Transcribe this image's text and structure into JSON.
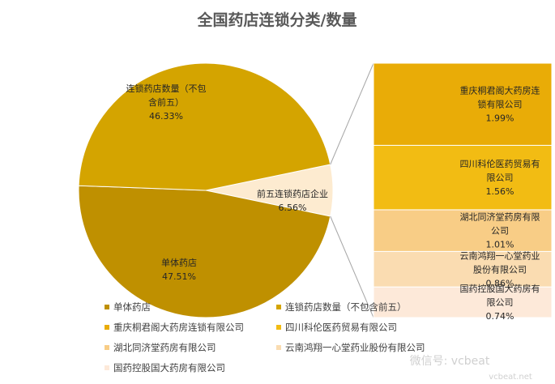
{
  "chart_data": {
    "type": "bar-of-pie",
    "title": "全国药店连锁分类/数量",
    "pie": [
      {
        "name": "单体药店",
        "label": [
          "单体药店"
        ],
        "pct": "47.51%",
        "value": 47.51,
        "color": "#bf9000"
      },
      {
        "name": "连锁药店数量（不包含前五）",
        "label": [
          "连锁药店数量（不包",
          "含前五）"
        ],
        "pct": "46.33%",
        "value": 46.33,
        "color": "#d4a400"
      },
      {
        "name": "前五连锁药店企业",
        "label": [
          "前五连锁药店企业"
        ],
        "pct": "6.56%",
        "value": 6.56,
        "color": "#fdebd0"
      }
    ],
    "bar": [
      {
        "name": "重庆桐君阁大药房连锁有限公司",
        "label": [
          "重庆桐君阁大药房连",
          "锁有限公司"
        ],
        "pct": "1.99%",
        "value": 1.99,
        "color": "#e9ac07"
      },
      {
        "name": "四川科伦医药贸易有限公司",
        "label": [
          "四川科伦医药贸易有",
          "限公司"
        ],
        "pct": "1.56%",
        "value": 1.56,
        "color": "#f2bc13"
      },
      {
        "name": "湖北同济堂药房有限公司",
        "label": [
          "湖北同济堂药房有限",
          "公司"
        ],
        "pct": "1.01%",
        "value": 1.01,
        "color": "#f8cd86"
      },
      {
        "name": "云南鸿翔一心堂药业股份有限公司",
        "label": [
          "云南鸿翔一心堂药业",
          "股份有限公司"
        ],
        "pct": "0.86%",
        "value": 0.86,
        "color": "#fadcb1"
      },
      {
        "name": "国药控股国大药房有限公司",
        "label": [
          "国药控股国大药房有",
          "限公司"
        ],
        "pct": "0.74%",
        "value": 0.74,
        "color": "#fde9d9"
      }
    ],
    "legend": [
      "单体药店",
      "连锁药店数量（不包含前五）",
      "重庆桐君阁大药房连锁有限公司",
      "四川科伦医药贸易有限公司",
      "湖北同济堂药房有限公司",
      "云南鸿翔一心堂药业股份有限公司",
      "国药控股国大药房有限公司"
    ],
    "legend_colors": [
      "#bf9000",
      "#d4a400",
      "#e9ac07",
      "#f2bc13",
      "#f8cd86",
      "#fadcb1",
      "#fde9d9"
    ],
    "legend_position": "bottom"
  },
  "watermark": {
    "weixin_label": "微信号",
    "weixin_id": "vcbeat",
    "site_text": "vcbeat.net"
  }
}
